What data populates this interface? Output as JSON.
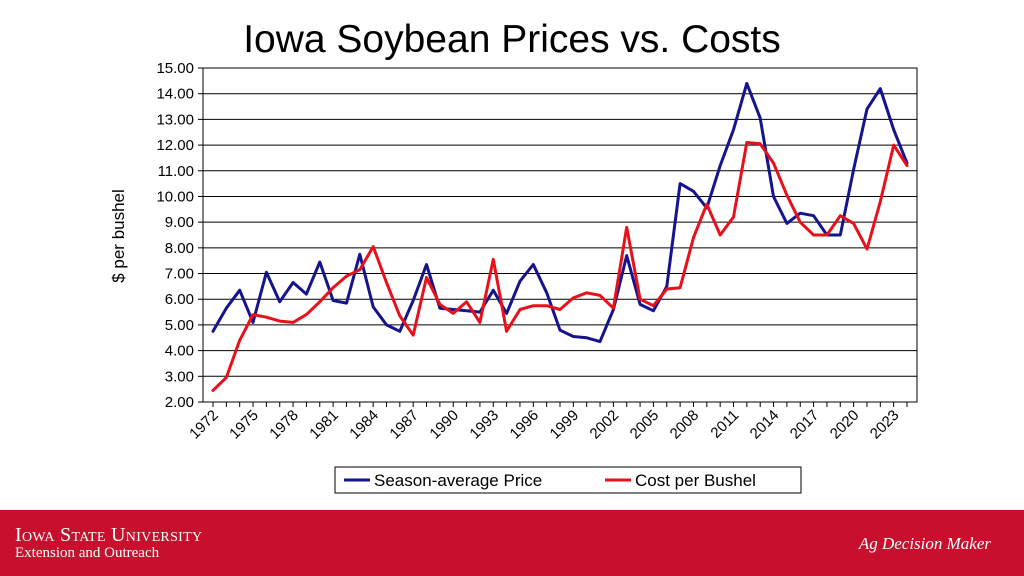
{
  "chart_data": {
    "type": "line",
    "title": "Iowa Soybean Prices vs. Costs",
    "xlabel": "",
    "ylabel": "$ per bushel",
    "ylim": [
      2.0,
      15.0
    ],
    "ytick_step": 1.0,
    "yticks": [
      "2.00",
      "3.00",
      "4.00",
      "5.00",
      "6.00",
      "7.00",
      "8.00",
      "9.00",
      "10.00",
      "11.00",
      "12.00",
      "13.00",
      "14.00",
      "15.00"
    ],
    "x": [
      1972,
      1973,
      1974,
      1975,
      1976,
      1977,
      1978,
      1979,
      1980,
      1981,
      1982,
      1983,
      1984,
      1985,
      1986,
      1987,
      1988,
      1989,
      1990,
      1991,
      1992,
      1993,
      1994,
      1995,
      1996,
      1997,
      1998,
      1999,
      2000,
      2001,
      2002,
      2003,
      2004,
      2005,
      2006,
      2007,
      2008,
      2009,
      2010,
      2011,
      2012,
      2013,
      2014,
      2015,
      2016,
      2017,
      2018,
      2019,
      2020,
      2021,
      2022,
      2023,
      2024
    ],
    "xtick_labels": [
      "1972",
      "1975",
      "1978",
      "1981",
      "1984",
      "1987",
      "1990",
      "1993",
      "1996",
      "1999",
      "2002",
      "2005",
      "2008",
      "2011",
      "2014",
      "2017",
      "2020",
      "2023"
    ],
    "grid": true,
    "legend_position": "bottom",
    "series": [
      {
        "name": "Season-average Price",
        "color": "#14148c",
        "values": [
          4.75,
          5.65,
          6.35,
          5.1,
          7.05,
          5.9,
          6.65,
          6.2,
          7.45,
          5.95,
          5.85,
          7.75,
          5.7,
          5.0,
          4.75,
          5.95,
          7.35,
          5.65,
          5.6,
          5.55,
          5.5,
          6.35,
          5.45,
          6.7,
          7.35,
          6.25,
          4.8,
          4.55,
          4.5,
          4.35,
          5.6,
          7.7,
          5.8,
          5.55,
          6.5,
          10.5,
          10.2,
          9.55,
          11.2,
          12.6,
          14.4,
          13.05,
          10.0,
          8.95,
          9.35,
          9.25,
          8.5,
          8.5,
          11.05,
          13.4,
          14.2,
          12.6,
          11.3
        ]
      },
      {
        "name": "Cost per Bushel",
        "color": "#e8101a",
        "values": [
          2.45,
          2.95,
          4.4,
          5.4,
          5.3,
          5.15,
          5.1,
          5.4,
          5.9,
          6.45,
          6.9,
          7.15,
          8.05,
          6.65,
          5.35,
          4.6,
          6.85,
          5.8,
          5.45,
          5.9,
          5.1,
          7.55,
          4.75,
          5.6,
          5.75,
          5.75,
          5.6,
          6.05,
          6.25,
          6.15,
          5.65,
          8.8,
          6.0,
          5.75,
          6.4,
          6.45,
          8.4,
          9.7,
          8.5,
          9.2,
          12.1,
          12.05,
          11.3,
          10.05,
          9.0,
          8.5,
          8.5,
          9.25,
          8.95,
          7.95,
          9.8,
          12.0,
          11.2
        ]
      }
    ]
  },
  "footer": {
    "institution": "Iowa State University",
    "subtitle": "Extension and Outreach",
    "brand": "Ag Decision Maker"
  }
}
